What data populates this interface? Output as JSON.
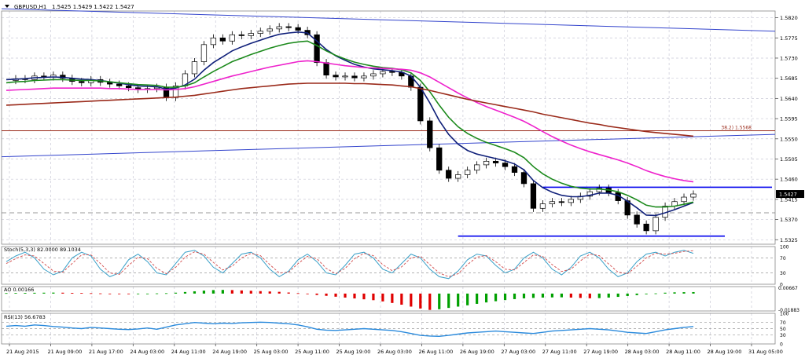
{
  "header": {
    "symbol": "GBPUSD,H1",
    "ohlc": "1.5425 1.5429 1.5422 1.5427"
  },
  "colors": {
    "background": "#ffffff",
    "grid": "#c9c9d6",
    "bull_candle": "#ffffff",
    "bear_candle": "#000000",
    "ma_navy": "#10207a",
    "ma_green": "#1c8a1c",
    "ma_magenta": "#ee22cc",
    "ma_brown": "#9a2a1a",
    "trend_blue": "#3344cc",
    "level_blue": "#0000ee",
    "fib_line": "#9a2a1a",
    "stoch_main": "#3aa0c8",
    "stoch_signal": "#d24a4a",
    "ao_up": "#00a000",
    "ao_down": "#e00000",
    "rsi": "#2a8adc"
  },
  "chart_data": {
    "type": "line",
    "price_axis_ticks": [
      "1.5820",
      "1.5775",
      "1.5730",
      "1.5685",
      "1.5640",
      "1.5595",
      "1.5550",
      "1.5505",
      "1.5460",
      "1.5415",
      "1.5370",
      "1.5325"
    ],
    "current_price_label": "1.5427",
    "fib_label": "38.2) 1.5568",
    "time_axis_ticks": [
      "21 Aug 2015",
      "21 Aug 09:00",
      "21 Aug 17:00",
      "24 Aug 03:00",
      "24 Aug 11:00",
      "24 Aug 19:00",
      "25 Aug 03:00",
      "25 Aug 11:00",
      "25 Aug 19:00",
      "26 Aug 03:00",
      "26 Aug 11:00",
      "26 Aug 19:00",
      "27 Aug 03:00",
      "27 Aug 11:00",
      "27 Aug 19:00",
      "28 Aug 03:00",
      "28 Aug 11:00",
      "28 Aug 19:00",
      "31 Aug 05:00"
    ],
    "ylim": [
      1.5315,
      1.5835
    ],
    "horizontal_levels": [
      {
        "name": "fib",
        "value": 1.5568
      },
      {
        "name": "resistance",
        "value": 1.5442
      },
      {
        "name": "support",
        "value": 1.5333
      },
      {
        "name": "dashed",
        "value": 1.5385
      }
    ],
    "series": [
      {
        "name": "close",
        "values": [
          1.568,
          1.5684,
          1.5682,
          1.569,
          1.5688,
          1.5692,
          1.5685,
          1.5678,
          1.5675,
          1.5682,
          1.5676,
          1.5672,
          1.5668,
          1.5664,
          1.566,
          1.5662,
          1.5665,
          1.5642,
          1.5668,
          1.5695,
          1.5722,
          1.576,
          1.5775,
          1.5768,
          1.5782,
          1.578,
          1.5785,
          1.579,
          1.5795,
          1.58,
          1.5798,
          1.5792,
          1.5782,
          1.572,
          1.5692,
          1.5688,
          1.569,
          1.5686,
          1.569,
          1.5695,
          1.57,
          1.5698,
          1.569,
          1.5665,
          1.559,
          1.553,
          1.548,
          1.5462,
          1.547,
          1.548,
          1.5492,
          1.55,
          1.5496,
          1.5488,
          1.5475,
          1.545,
          1.5395,
          1.5405,
          1.541,
          1.5408,
          1.5415,
          1.5422,
          1.5432,
          1.544,
          1.543,
          1.5412,
          1.538,
          1.536,
          1.5345,
          1.5375,
          1.54,
          1.541,
          1.542,
          1.5427
        ]
      },
      {
        "name": "ma_fast",
        "values": [
          1.5682,
          1.5683,
          1.5684,
          1.5686,
          1.5687,
          1.5688,
          1.5687,
          1.5685,
          1.5683,
          1.5682,
          1.568,
          1.5677,
          1.5674,
          1.5671,
          1.5668,
          1.5667,
          1.5666,
          1.5661,
          1.5663,
          1.567,
          1.5683,
          1.5703,
          1.572,
          1.5733,
          1.5746,
          1.5755,
          1.5763,
          1.577,
          1.5777,
          1.5783,
          1.5786,
          1.5788,
          1.5786,
          1.5768,
          1.5749,
          1.5735,
          1.5725,
          1.5716,
          1.571,
          1.5706,
          1.5704,
          1.5702,
          1.5699,
          1.569,
          1.5665,
          1.563,
          1.5591,
          1.556,
          1.5538,
          1.5524,
          1.5516,
          1.5511,
          1.5506,
          1.5501,
          1.5494,
          1.5481,
          1.5457,
          1.5441,
          1.5431,
          1.5424,
          1.5421,
          1.5421,
          1.5424,
          1.5429,
          1.5429,
          1.5424,
          1.5411,
          1.5396,
          1.538,
          1.5379,
          1.5385,
          1.5392,
          1.54,
          1.5408
        ]
      },
      {
        "name": "ma_mid",
        "values": [
          1.5675,
          1.5677,
          1.5678,
          1.568,
          1.5681,
          1.5682,
          1.5682,
          1.5681,
          1.568,
          1.568,
          1.5679,
          1.5677,
          1.5675,
          1.5673,
          1.5671,
          1.567,
          1.5669,
          1.5665,
          1.5665,
          1.5668,
          1.5675,
          1.5688,
          1.57,
          1.5711,
          1.5722,
          1.573,
          1.5738,
          1.5745,
          1.5752,
          1.5758,
          1.5763,
          1.5766,
          1.5768,
          1.5758,
          1.5746,
          1.5736,
          1.5728,
          1.5721,
          1.5716,
          1.5712,
          1.5709,
          1.5707,
          1.5704,
          1.5697,
          1.568,
          1.5655,
          1.5625,
          1.5598,
          1.5577,
          1.5562,
          1.5551,
          1.5542,
          1.5535,
          1.5528,
          1.552,
          1.5508,
          1.5488,
          1.5472,
          1.546,
          1.5451,
          1.5444,
          1.544,
          1.5438,
          1.5438,
          1.5436,
          1.5432,
          1.5424,
          1.5414,
          1.5402,
          1.5398,
          1.5398,
          1.54,
          1.5404,
          1.5409
        ]
      },
      {
        "name": "ma_slow",
        "values": [
          1.5658,
          1.5659,
          1.566,
          1.5661,
          1.5662,
          1.5663,
          1.5663,
          1.5663,
          1.5663,
          1.5663,
          1.5663,
          1.5662,
          1.5662,
          1.5661,
          1.566,
          1.566,
          1.566,
          1.5659,
          1.566,
          1.5662,
          1.5666,
          1.5672,
          1.5678,
          1.5684,
          1.569,
          1.5695,
          1.57,
          1.5705,
          1.571,
          1.5714,
          1.5718,
          1.5722,
          1.5724,
          1.5722,
          1.5719,
          1.5716,
          1.5713,
          1.5711,
          1.5709,
          1.5708,
          1.5707,
          1.5706,
          1.5705,
          1.5703,
          1.5697,
          1.5688,
          1.5676,
          1.5664,
          1.5652,
          1.5641,
          1.5631,
          1.5622,
          1.5614,
          1.5606,
          1.5598,
          1.5589,
          1.5578,
          1.5566,
          1.5555,
          1.5545,
          1.5536,
          1.5528,
          1.5521,
          1.5515,
          1.5509,
          1.5503,
          1.5496,
          1.5488,
          1.5479,
          1.5472,
          1.5466,
          1.5461,
          1.5457,
          1.5454
        ]
      },
      {
        "name": "ma_long",
        "values": [
          1.5625,
          1.5626,
          1.5627,
          1.5628,
          1.5629,
          1.563,
          1.5631,
          1.5632,
          1.5633,
          1.5634,
          1.5635,
          1.5636,
          1.5637,
          1.5638,
          1.5639,
          1.564,
          1.5641,
          1.5642,
          1.5643,
          1.5645,
          1.5647,
          1.565,
          1.5653,
          1.5656,
          1.5659,
          1.5662,
          1.5664,
          1.5666,
          1.5668,
          1.567,
          1.5672,
          1.5673,
          1.5674,
          1.5674,
          1.5674,
          1.5674,
          1.5674,
          1.5673,
          1.5673,
          1.5672,
          1.5671,
          1.567,
          1.5668,
          1.5666,
          1.5662,
          1.5658,
          1.5653,
          1.5648,
          1.5643,
          1.5638,
          1.5634,
          1.563,
          1.5626,
          1.5622,
          1.5618,
          1.5614,
          1.561,
          1.5605,
          1.5601,
          1.5597,
          1.5593,
          1.5589,
          1.5585,
          1.5582,
          1.5578,
          1.5575,
          1.5572,
          1.5569,
          1.5566,
          1.5564,
          1.5562,
          1.556,
          1.5558,
          1.5556
        ]
      }
    ],
    "trend_lines": [
      {
        "name": "upper",
        "from": [
          0,
          1.584
        ],
        "to": [
          73,
          1.579
        ]
      },
      {
        "name": "lower",
        "from": [
          0,
          1.551
        ],
        "to": [
          73,
          1.556
        ]
      }
    ],
    "stochastic": {
      "label": "Stoch(5,3,3) 82.0000 89.1034",
      "ticks": [
        "100",
        "70",
        "30",
        "0"
      ],
      "ylim": [
        0,
        100
      ],
      "main": [
        60,
        75,
        85,
        70,
        40,
        25,
        35,
        70,
        85,
        75,
        40,
        20,
        30,
        65,
        80,
        60,
        30,
        25,
        55,
        85,
        90,
        75,
        45,
        30,
        55,
        80,
        85,
        70,
        40,
        20,
        35,
        65,
        80,
        60,
        30,
        25,
        50,
        80,
        85,
        70,
        40,
        30,
        55,
        80,
        70,
        40,
        20,
        15,
        35,
        65,
        80,
        75,
        50,
        30,
        40,
        70,
        85,
        70,
        40,
        25,
        45,
        75,
        85,
        70,
        40,
        20,
        30,
        60,
        80,
        85,
        75,
        85,
        90,
        82
      ],
      "signal": [
        55,
        68,
        78,
        75,
        55,
        35,
        32,
        55,
        78,
        78,
        55,
        30,
        26,
        50,
        72,
        68,
        42,
        28,
        45,
        72,
        86,
        80,
        58,
        38,
        48,
        70,
        82,
        76,
        52,
        30,
        32,
        55,
        74,
        68,
        42,
        28,
        42,
        68,
        82,
        76,
        52,
        36,
        46,
        70,
        74,
        52,
        30,
        20,
        28,
        52,
        72,
        76,
        60,
        40,
        38,
        58,
        78,
        74,
        52,
        34,
        40,
        62,
        80,
        76,
        54,
        32,
        28,
        48,
        70,
        82,
        80,
        82,
        87,
        89
      ]
    },
    "awesome_oscillator": {
      "label": "AO 0.00166",
      "ticks": [
        "0.00667",
        "-0.01883"
      ],
      "ylim": [
        -0.02,
        0.008
      ],
      "values": [
        0.0005,
        0.0007,
        0.0008,
        0.0009,
        0.001,
        0.0011,
        0.001,
        0.0008,
        0.0006,
        0.0004,
        0.0002,
        0.0,
        -0.0002,
        -0.0003,
        -0.0002,
        0.0,
        0.0002,
        0.0004,
        0.001,
        0.0018,
        0.0026,
        0.0034,
        0.004,
        0.0042,
        0.004,
        0.0036,
        0.0032,
        0.0028,
        0.0024,
        0.002,
        0.0012,
        0.0004,
        -0.0006,
        -0.0016,
        -0.0026,
        -0.0036,
        -0.0046,
        -0.0056,
        -0.0066,
        -0.0076,
        -0.009,
        -0.0108,
        -0.0128,
        -0.015,
        -0.0172,
        -0.0188,
        -0.018,
        -0.0165,
        -0.015,
        -0.0135,
        -0.0118,
        -0.0102,
        -0.0088,
        -0.0075,
        -0.0064,
        -0.0055,
        -0.005,
        -0.0046,
        -0.0044,
        -0.0043,
        -0.0046,
        -0.005,
        -0.0054,
        -0.0052,
        -0.0046,
        -0.0038,
        -0.0028,
        -0.0018,
        -0.0008,
        0.0002,
        0.001,
        0.0014,
        0.0016,
        0.0017
      ]
    },
    "rsi": {
      "label": "RSI(13) 56.6783",
      "ticks": [
        "100",
        "70",
        "50",
        "30",
        "0"
      ],
      "ylim": [
        0,
        100
      ],
      "values": [
        58,
        60,
        58,
        62,
        60,
        57,
        55,
        52,
        50,
        54,
        52,
        50,
        48,
        47,
        49,
        52,
        48,
        55,
        62,
        66,
        70,
        68,
        66,
        68,
        67,
        69,
        70,
        71,
        70,
        68,
        66,
        62,
        56,
        48,
        45,
        44,
        46,
        48,
        50,
        48,
        46,
        44,
        40,
        34,
        28,
        26,
        25,
        28,
        32,
        36,
        38,
        40,
        42,
        40,
        38,
        36,
        34,
        38,
        42,
        44,
        46,
        48,
        50,
        48,
        46,
        42,
        38,
        36,
        34,
        40,
        46,
        50,
        54,
        57
      ]
    }
  }
}
